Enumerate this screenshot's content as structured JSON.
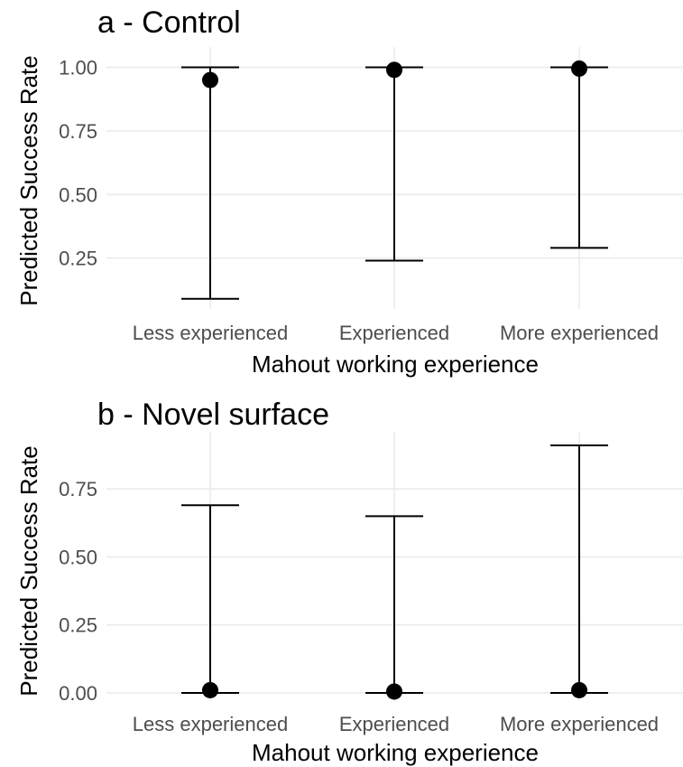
{
  "chart_data": [
    {
      "type": "scatter",
      "title": "a - Control",
      "xlabel": "Mahout working experience",
      "ylabel": "Predicted Success Rate",
      "categories": [
        "Less experienced",
        "Experienced",
        "More experienced"
      ],
      "values": [
        0.95,
        0.99,
        0.995
      ],
      "lower": [
        0.09,
        0.24,
        0.29
      ],
      "upper": [
        1.0,
        1.0,
        1.0
      ],
      "ylim": [
        0.05,
        1.08
      ],
      "yticks": [
        0.25,
        0.5,
        0.75,
        1.0
      ],
      "ytick_labels": [
        "0.25",
        "0.50",
        "0.75",
        "1.00"
      ],
      "grid": true,
      "style": {
        "point_color": "#000000",
        "errorbar_color": "#000000",
        "grid_color": "#ebebeb",
        "tick_color": "#4d4d4d"
      }
    },
    {
      "type": "scatter",
      "title": "b - Novel surface",
      "xlabel": "Mahout working experience",
      "ylabel": "Predicted Success Rate",
      "categories": [
        "Less experienced",
        "Experienced",
        "More experienced"
      ],
      "values": [
        0.01,
        0.005,
        0.01
      ],
      "lower": [
        0.0,
        0.0,
        0.0
      ],
      "upper": [
        0.69,
        0.65,
        0.91
      ],
      "ylim": [
        -0.03,
        0.96
      ],
      "yticks": [
        0.0,
        0.25,
        0.5,
        0.75
      ],
      "ytick_labels": [
        "0.00",
        "0.25",
        "0.50",
        "0.75"
      ],
      "grid": true,
      "style": {
        "point_color": "#000000",
        "errorbar_color": "#000000",
        "grid_color": "#ebebeb",
        "tick_color": "#4d4d4d"
      }
    }
  ]
}
